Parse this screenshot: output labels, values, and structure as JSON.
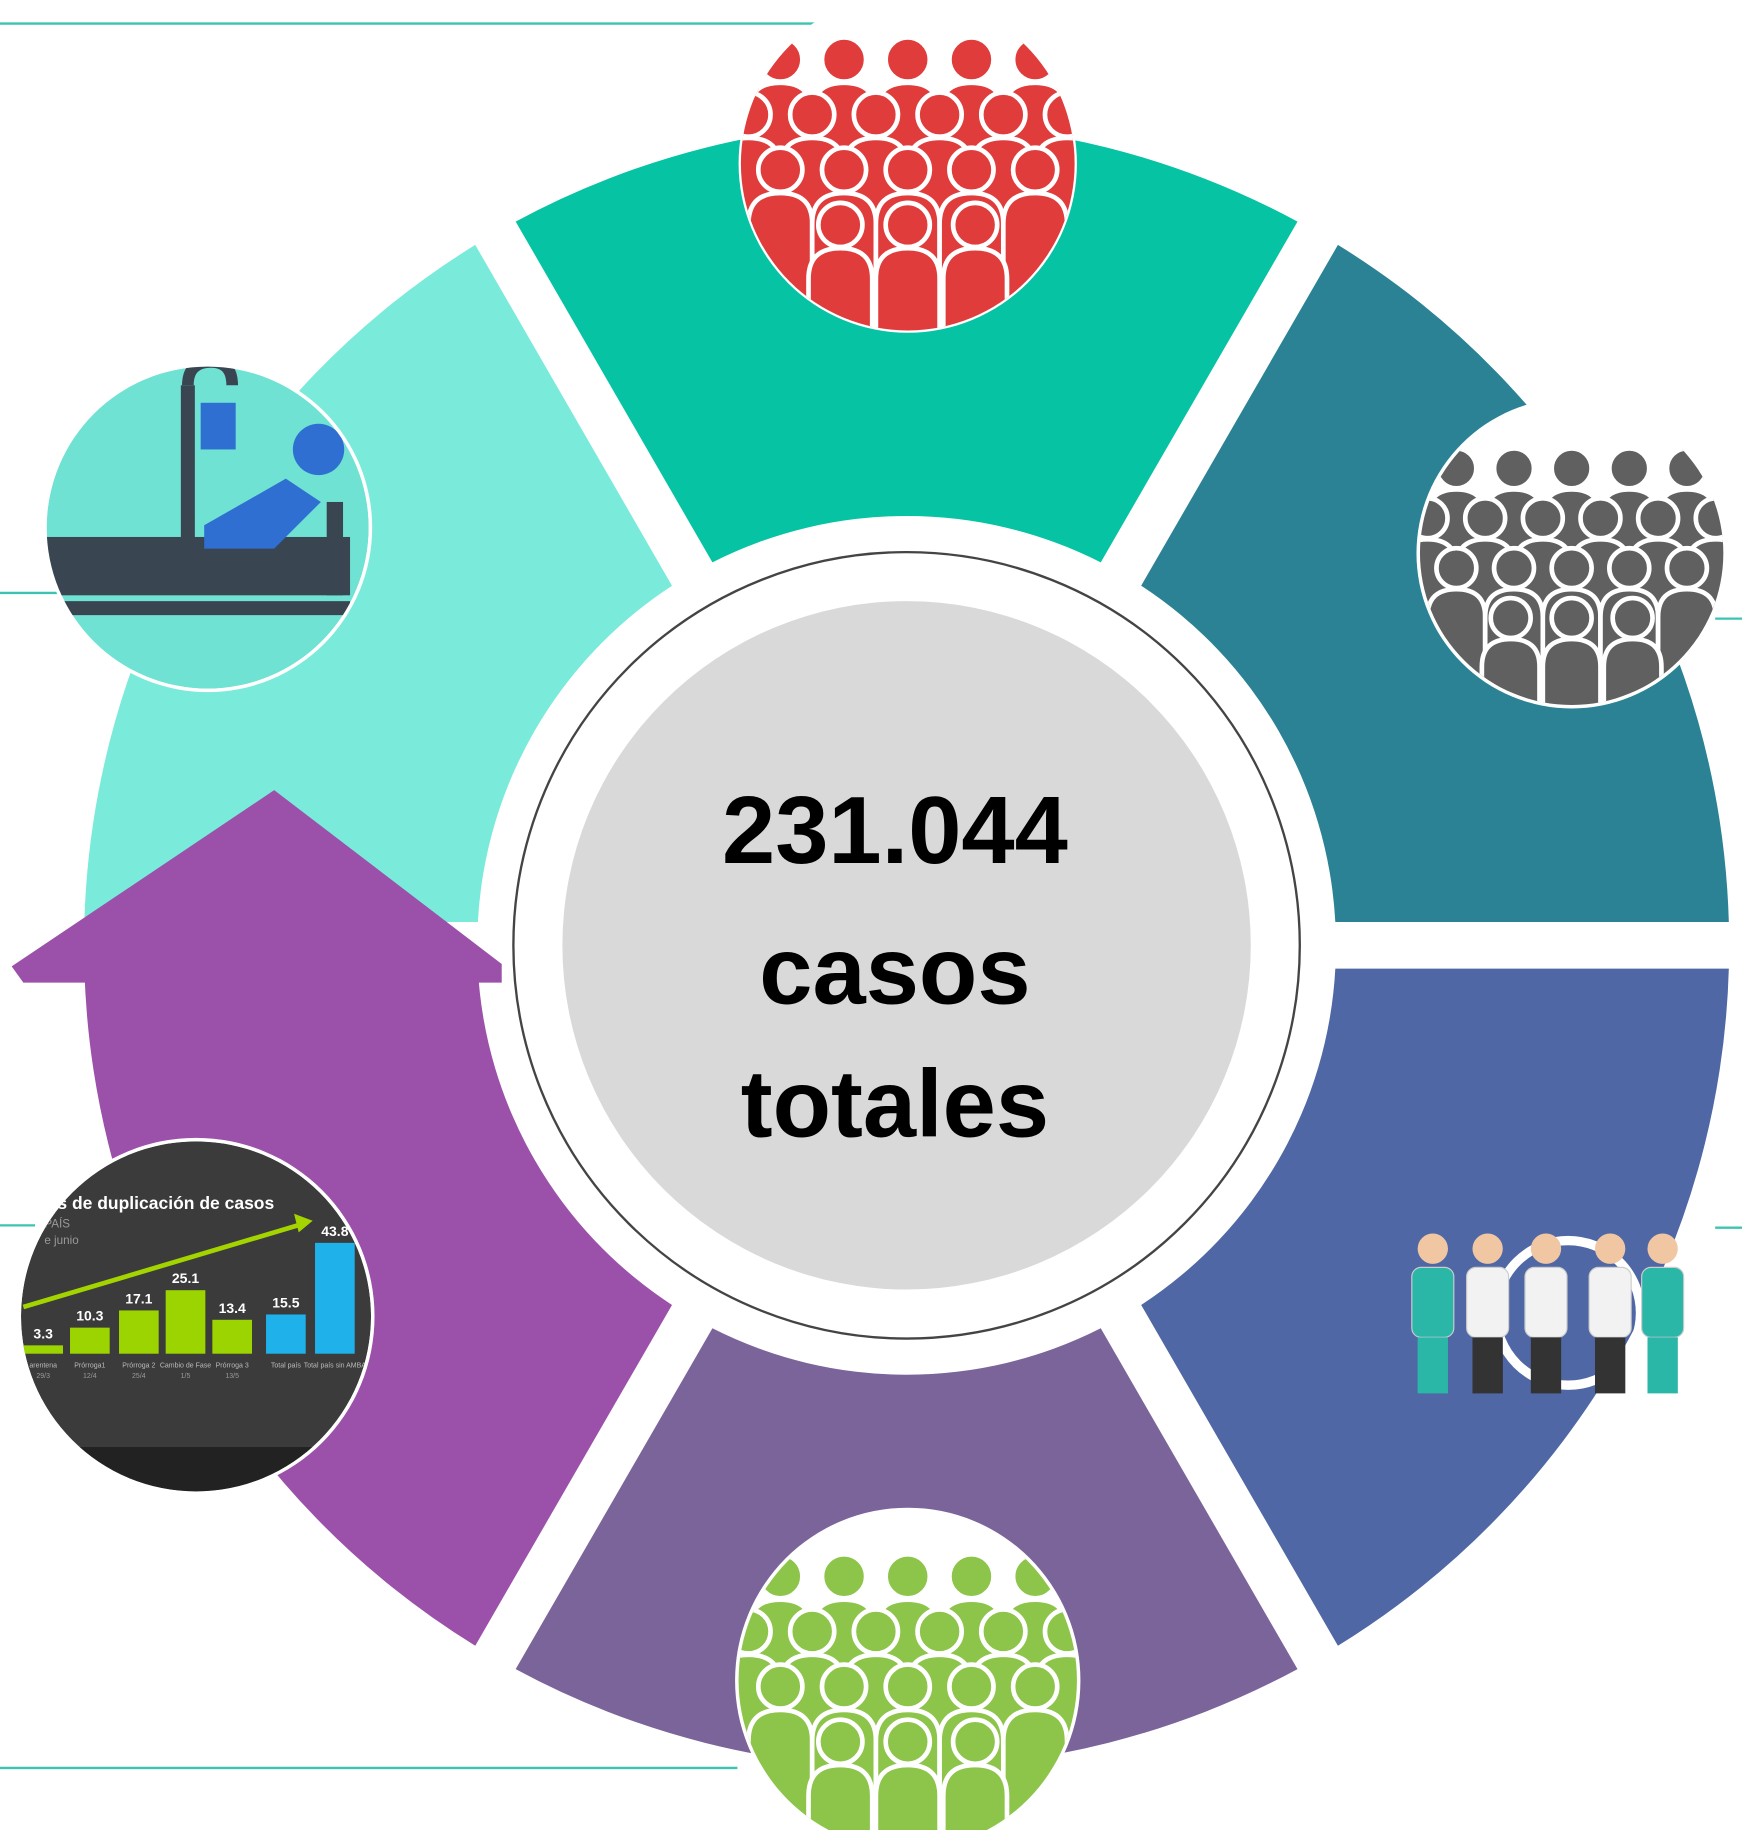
{
  "center": {
    "lines": [
      "231.044",
      "casos",
      "totales"
    ]
  },
  "inset_chart": {
    "type": "bar",
    "title": "os de duplicación de casos",
    "subtitle": [
      "PAÍS",
      "e junio"
    ],
    "categories": [
      "arentena",
      "Prórroga1",
      "Prórroga 2",
      "Cambio de Fase",
      "Prórroga 3",
      "Total país",
      "Total país sin AMBA"
    ],
    "dates": [
      "29/3",
      "12/4",
      "25/4",
      "1/5",
      "13/5",
      null,
      null
    ],
    "values": [
      3.3,
      10.3,
      17.1,
      25.1,
      13.4,
      15.5,
      43.8
    ],
    "colors": [
      "#9bd400",
      "#9bd400",
      "#9bd400",
      "#9bd400",
      "#9bd400",
      "#1fb2ea",
      "#1fb2ea"
    ]
  }
}
